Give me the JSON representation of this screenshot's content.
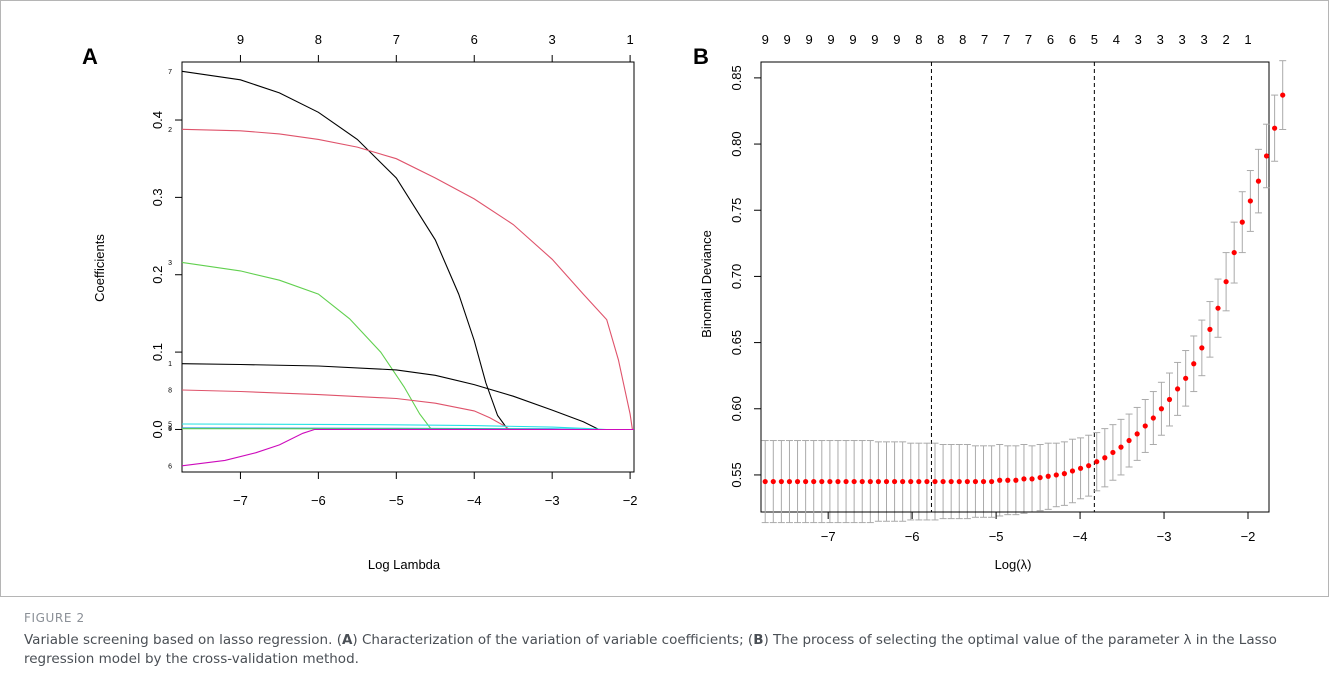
{
  "figure_label": "FIGURE 2",
  "caption": {
    "p1": "Variable screening based on lasso regression. (",
    "a": "A",
    "p2": ") Characterization of the variation of variable coefficients; (",
    "b": "B",
    "p3": ") The process of selecting the optimal value of the parameter λ in the Lasso regression model by the cross-validation method."
  },
  "chart_data": [
    {
      "panel": "A",
      "type": "line",
      "xlabel": "Log Lambda",
      "ylabel": "Coefficients",
      "xlim": [
        -7.75,
        -1.95
      ],
      "ylim": [
        -0.055,
        0.475
      ],
      "xticks": [
        -7,
        -6,
        -5,
        -4,
        -3,
        -2
      ],
      "yticks": [
        0.0,
        0.1,
        0.2,
        0.3,
        0.4
      ],
      "top_axis_ticks": [
        {
          "x": -7.0,
          "label": "9"
        },
        {
          "x": -6.0,
          "label": "8"
        },
        {
          "x": -5.0,
          "label": "7"
        },
        {
          "x": -4.0,
          "label": "6"
        },
        {
          "x": -3.0,
          "label": "3"
        },
        {
          "x": -2.0,
          "label": "1"
        }
      ],
      "series": [
        {
          "name": "7",
          "color": "#000000",
          "points": [
            [
              -7.75,
              0.463
            ],
            [
              -7,
              0.452
            ],
            [
              -6.5,
              0.435
            ],
            [
              -6,
              0.41
            ],
            [
              -5.5,
              0.375
            ],
            [
              -5,
              0.325
            ],
            [
              -4.5,
              0.245
            ],
            [
              -4.2,
              0.175
            ],
            [
              -4,
              0.115
            ],
            [
              -3.85,
              0.06
            ],
            [
              -3.7,
              0.018
            ],
            [
              -3.57,
              0
            ]
          ]
        },
        {
          "name": "2",
          "color": "#df536b",
          "points": [
            [
              -7.75,
              0.388
            ],
            [
              -7,
              0.386
            ],
            [
              -6.5,
              0.382
            ],
            [
              -6,
              0.375
            ],
            [
              -5.5,
              0.365
            ],
            [
              -5,
              0.35
            ],
            [
              -4.5,
              0.325
            ],
            [
              -4,
              0.298
            ],
            [
              -3.5,
              0.265
            ],
            [
              -3,
              0.22
            ],
            [
              -2.6,
              0.175
            ],
            [
              -2.3,
              0.142
            ],
            [
              -2.15,
              0.09
            ],
            [
              -2.0,
              0.02
            ],
            [
              -1.97,
              0
            ]
          ]
        },
        {
          "name": "3",
          "color": "#61d04f",
          "points": [
            [
              -7.75,
              0.216
            ],
            [
              -7,
              0.205
            ],
            [
              -6.5,
              0.193
            ],
            [
              -6,
              0.175
            ],
            [
              -5.6,
              0.143
            ],
            [
              -5.2,
              0.1
            ],
            [
              -4.9,
              0.055
            ],
            [
              -4.7,
              0.02
            ],
            [
              -4.55,
              0
            ]
          ]
        },
        {
          "name": "1",
          "color": "#000000",
          "points": [
            [
              -7.75,
              0.085
            ],
            [
              -7,
              0.084
            ],
            [
              -6,
              0.082
            ],
            [
              -5,
              0.077
            ],
            [
              -4.5,
              0.07
            ],
            [
              -4,
              0.058
            ],
            [
              -3.5,
              0.043
            ],
            [
              -3,
              0.025
            ],
            [
              -2.6,
              0.01
            ],
            [
              -2.4,
              0
            ]
          ]
        },
        {
          "name": "8",
          "color": "#df536b",
          "points": [
            [
              -7.75,
              0.051
            ],
            [
              -7,
              0.049
            ],
            [
              -6,
              0.045
            ],
            [
              -5,
              0.04
            ],
            [
              -4.5,
              0.034
            ],
            [
              -4,
              0.024
            ],
            [
              -3.8,
              0.015
            ],
            [
              -3.6,
              0.004
            ],
            [
              -3.55,
              0
            ]
          ]
        },
        {
          "name": "5",
          "color": "#28e2e5",
          "points": [
            [
              -7.75,
              0.007
            ],
            [
              -6,
              0.0065
            ],
            [
              -5,
              0.006
            ],
            [
              -4,
              0.005
            ],
            [
              -3,
              0.003
            ],
            [
              -2.5,
              0.001
            ],
            [
              -2.3,
              0
            ]
          ]
        },
        {
          "name": "4",
          "color": "#2297e6",
          "points": [
            [
              -7.75,
              0.002
            ],
            [
              -5,
              0.0015
            ],
            [
              -3,
              0.0008
            ],
            [
              -2.5,
              0
            ]
          ]
        },
        {
          "name": "9",
          "color": "#61d04f",
          "points": [
            [
              -7.75,
              0.001
            ],
            [
              -6,
              0.0008
            ],
            [
              -4.5,
              0.0005
            ],
            [
              -3,
              0
            ]
          ]
        },
        {
          "name": "6",
          "color": "#cd0bbc",
          "points": [
            [
              -7.75,
              -0.047
            ],
            [
              -7.2,
              -0.04
            ],
            [
              -6.8,
              -0.03
            ],
            [
              -6.5,
              -0.02
            ],
            [
              -6.2,
              -0.005
            ],
            [
              -6.05,
              0
            ]
          ]
        }
      ]
    },
    {
      "panel": "B",
      "type": "scatter",
      "xlabel": "Log(λ)",
      "ylabel": "Binomial Deviance",
      "xlim": [
        -7.8,
        -1.75
      ],
      "ylim": [
        0.522,
        0.862
      ],
      "xticks": [
        -7,
        -6,
        -5,
        -4,
        -3,
        -2
      ],
      "yticks": [
        0.55,
        0.6,
        0.65,
        0.7,
        0.75,
        0.8,
        0.85
      ],
      "top_axis_labels": [
        "9",
        "9",
        "9",
        "9",
        "9",
        "9",
        "9",
        "8",
        "8",
        "8",
        "7",
        "7",
        "7",
        "6",
        "6",
        "5",
        "4",
        "3",
        "3",
        "3",
        "3",
        "2",
        "1"
      ],
      "top_axis_range": [
        -7.75,
        -2.0
      ],
      "vlines": [
        -5.77,
        -3.83
      ],
      "point_color": "#ff0000",
      "errorbar_color": "#aaaaaa",
      "x_start": -7.75,
      "x_step": 0.0963,
      "values": [
        0.545,
        0.545,
        0.545,
        0.545,
        0.545,
        0.545,
        0.545,
        0.545,
        0.545,
        0.545,
        0.545,
        0.545,
        0.545,
        0.545,
        0.545,
        0.545,
        0.545,
        0.545,
        0.545,
        0.545,
        0.545,
        0.545,
        0.545,
        0.545,
        0.545,
        0.545,
        0.545,
        0.545,
        0.545,
        0.546,
        0.546,
        0.546,
        0.547,
        0.547,
        0.548,
        0.549,
        0.55,
        0.551,
        0.553,
        0.555,
        0.557,
        0.56,
        0.563,
        0.567,
        0.571,
        0.576,
        0.581,
        0.587,
        0.593,
        0.6,
        0.607,
        0.615,
        0.623,
        0.634,
        0.646,
        0.66,
        0.676,
        0.696,
        0.718,
        0.741,
        0.757,
        0.772,
        0.791,
        0.812,
        0.837
      ],
      "errors": [
        0.031,
        0.031,
        0.031,
        0.031,
        0.031,
        0.031,
        0.031,
        0.031,
        0.031,
        0.031,
        0.031,
        0.031,
        0.031,
        0.031,
        0.03,
        0.03,
        0.03,
        0.03,
        0.029,
        0.029,
        0.029,
        0.029,
        0.028,
        0.028,
        0.028,
        0.028,
        0.027,
        0.027,
        0.027,
        0.027,
        0.026,
        0.026,
        0.026,
        0.025,
        0.025,
        0.025,
        0.024,
        0.024,
        0.024,
        0.023,
        0.023,
        0.022,
        0.022,
        0.021,
        0.021,
        0.02,
        0.02,
        0.02,
        0.02,
        0.02,
        0.02,
        0.02,
        0.021,
        0.021,
        0.021,
        0.021,
        0.022,
        0.022,
        0.023,
        0.023,
        0.023,
        0.024,
        0.024,
        0.025,
        0.026
      ]
    }
  ]
}
